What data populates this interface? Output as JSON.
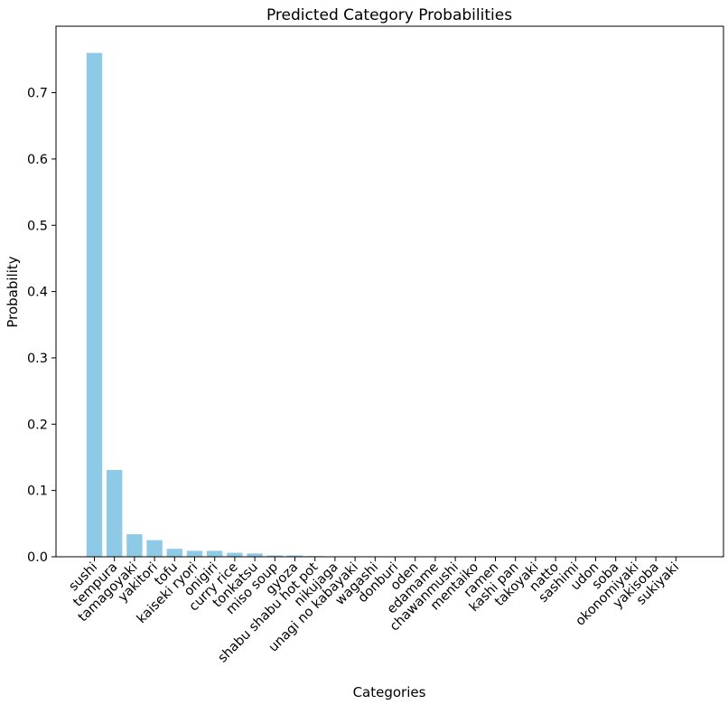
{
  "chart_data": {
    "type": "bar",
    "title": "Predicted Category Probabilities",
    "xlabel": "Categories",
    "ylabel": "Probability",
    "ylim": [
      0,
      0.8
    ],
    "yticks": [
      0.0,
      0.1,
      0.2,
      0.3,
      0.4,
      0.5,
      0.6,
      0.7
    ],
    "ytick_labels": [
      "0.0",
      "0.1",
      "0.2",
      "0.3",
      "0.4",
      "0.5",
      "0.6",
      "0.7"
    ],
    "bar_color": "#8ecae6",
    "grid": false,
    "categories": [
      "sushi",
      "tempura",
      "tamagoyaki",
      "yakitori",
      "tofu",
      "kaiseki ryori",
      "onigiri",
      "curry rice",
      "tonkatsu",
      "miso soup",
      "gyoza",
      "shabu shabu hot pot",
      "nikujaga",
      "unagi no kabayaki",
      "wagashi",
      "donburi",
      "oden",
      "edamame",
      "chawanmushi",
      "mentaiko",
      "ramen",
      "kashi pan",
      "takoyaki",
      "natto",
      "sashimi",
      "udon",
      "soba",
      "okonomiyaki",
      "yakisoba",
      "sukiyaki"
    ],
    "values": [
      0.76,
      0.131,
      0.034,
      0.025,
      0.012,
      0.009,
      0.009,
      0.006,
      0.005,
      0.002,
      0.002,
      0.001,
      0.0005,
      0.0005,
      0.0004,
      0.0004,
      0.0003,
      0.0003,
      0.0003,
      0.0003,
      0.0002,
      0.0002,
      0.0002,
      0.0002,
      0.0001,
      0.0001,
      0.0001,
      0.0001,
      0.0001,
      0.0001
    ]
  }
}
